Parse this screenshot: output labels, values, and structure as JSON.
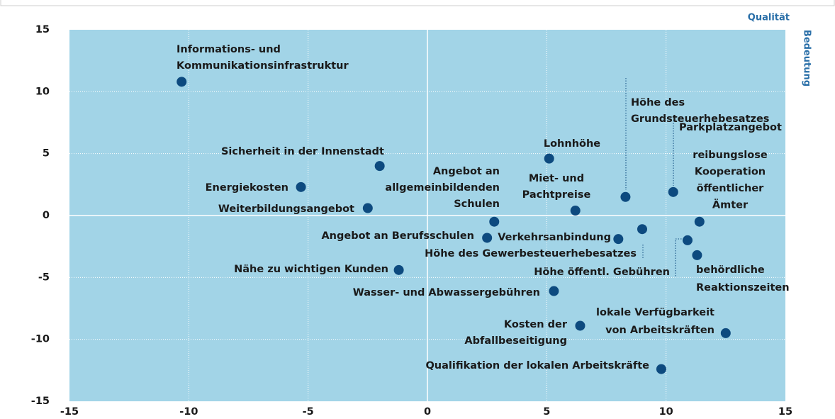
{
  "chart_data": {
    "type": "scatter",
    "xlabel": "Qualität",
    "ylabel": "Bedeutung",
    "xlim": [
      -15,
      15
    ],
    "ylim": [
      -15,
      15
    ],
    "xticks": [
      -15,
      -10,
      -5,
      0,
      5,
      10,
      15
    ],
    "yticks": [
      -15,
      -10,
      -5,
      0,
      5,
      10,
      15
    ],
    "grid": true,
    "color": "#0d4a7f",
    "points": [
      {
        "label": [
          "Informations- und",
          "Kommunikationsinfrastruktur"
        ],
        "x": -10.3,
        "y": 10.8
      },
      {
        "label": [
          "Sicherheit in der Innenstadt"
        ],
        "x": -2.0,
        "y": 4.0
      },
      {
        "label": [
          "Energiekosten"
        ],
        "x": -5.3,
        "y": 2.3
      },
      {
        "label": [
          "Weiterbildungsangebot"
        ],
        "x": -2.5,
        "y": 0.6
      },
      {
        "label": [
          "Angebot an",
          "allgemeinbildenden",
          "Schulen"
        ],
        "x": 2.8,
        "y": -0.5
      },
      {
        "label": [
          "Angebot an Berufsschulen"
        ],
        "x": 2.5,
        "y": -1.8
      },
      {
        "label": [
          "Nähe zu wichtigen Kunden"
        ],
        "x": -1.2,
        "y": -4.4
      },
      {
        "label": [
          "Wasser- und Abwassergebühren"
        ],
        "x": 5.3,
        "y": -6.1
      },
      {
        "label": [
          "Kosten der",
          "Abfallbeseitigung"
        ],
        "x": 6.4,
        "y": -8.9
      },
      {
        "label": [
          "Qualifikation der lokalen Arbeitskräfte"
        ],
        "x": 9.8,
        "y": -12.4
      },
      {
        "label": [
          "Lohnhöhe"
        ],
        "x": 5.1,
        "y": 4.6
      },
      {
        "label": [
          "Miet- und",
          "Pachtpreise"
        ],
        "x": 6.2,
        "y": 0.4
      },
      {
        "label": [
          "Höhe des",
          "Grundsteuerhebesatzes"
        ],
        "x": 8.3,
        "y": 1.5
      },
      {
        "label": [
          "Parkplatzangebot"
        ],
        "x": 10.3,
        "y": 1.9
      },
      {
        "label": [
          "reibungslose",
          "Kooperation",
          "öffentlicher",
          "Ämter"
        ],
        "x": 11.4,
        "y": -0.5
      },
      {
        "label": [
          "Verkehrsanbindung"
        ],
        "x": 8.0,
        "y": -1.9
      },
      {
        "label": [
          "Höhe des Gewerbesteuerhebesatzes"
        ],
        "x": 9.0,
        "y": -1.1
      },
      {
        "label": [
          "Höhe öffentl. Gebühren"
        ],
        "x": 10.9,
        "y": -2.0
      },
      {
        "label": [
          "behördliche",
          "Reaktionszeiten"
        ],
        "x": 11.3,
        "y": -3.2
      },
      {
        "label": [
          "lokale Verfügbarkeit",
          "von Arbeitskräften"
        ],
        "x": 12.5,
        "y": -9.5
      }
    ]
  }
}
